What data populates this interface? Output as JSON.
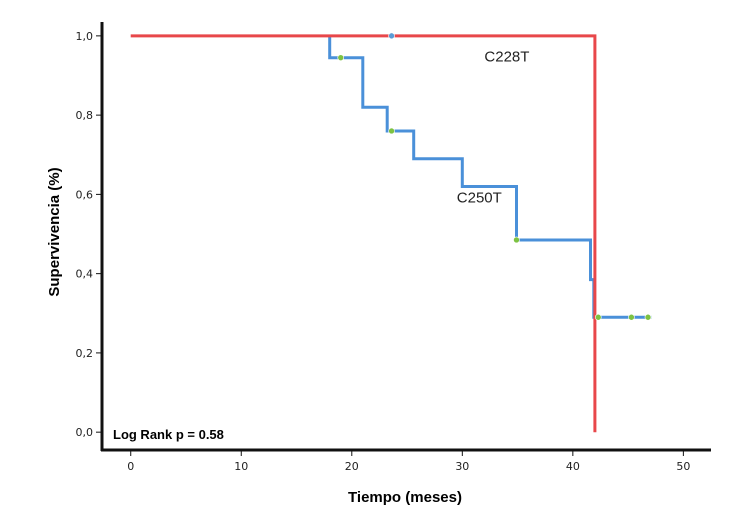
{
  "chart_data": {
    "type": "line",
    "subtype": "kaplan-meier-step",
    "xlabel": "Tiempo (meses)",
    "ylabel": "Supervivencia (%)",
    "xlim": [
      -2.6,
      52.5
    ],
    "ylim": [
      -0.045,
      1.035
    ],
    "x_ticks": [
      0,
      10,
      20,
      30,
      40,
      50
    ],
    "x_tick_labels": [
      "0",
      "10",
      "20",
      "30",
      "40",
      "50"
    ],
    "y_ticks": [
      0.0,
      0.2,
      0.4,
      0.6,
      0.8,
      1.0
    ],
    "y_tick_labels": [
      "0,0",
      "0,2",
      "0,4",
      "0,6",
      "0,8",
      "1,0"
    ],
    "annotation": "Log Rank p = 0.58",
    "series": [
      {
        "name": "C228T",
        "color": "#e8474a",
        "steps": [
          [
            0,
            1.0
          ],
          [
            42.0,
            1.0
          ],
          [
            42.0,
            0.0
          ]
        ],
        "censored": [
          [
            23.6,
            1.0
          ]
        ],
        "censor_color": "#5b9bd5"
      },
      {
        "name": "C250T",
        "color": "#4a90d9",
        "steps": [
          [
            18.0,
            1.0
          ],
          [
            18.0,
            0.945
          ],
          [
            21.0,
            0.945
          ],
          [
            21.0,
            0.82
          ],
          [
            23.2,
            0.82
          ],
          [
            23.2,
            0.76
          ],
          [
            25.6,
            0.76
          ],
          [
            25.6,
            0.69
          ],
          [
            30.0,
            0.69
          ],
          [
            30.0,
            0.62
          ],
          [
            34.9,
            0.62
          ],
          [
            34.9,
            0.485
          ],
          [
            41.6,
            0.485
          ],
          [
            41.6,
            0.385
          ],
          [
            41.9,
            0.385
          ],
          [
            41.9,
            0.29
          ],
          [
            47.1,
            0.29
          ]
        ],
        "censored": [
          [
            19.0,
            0.945
          ],
          [
            23.6,
            0.76
          ],
          [
            34.9,
            0.485
          ],
          [
            42.3,
            0.29
          ],
          [
            45.3,
            0.29
          ],
          [
            46.8,
            0.29
          ]
        ],
        "censor_color": "#7dc242"
      }
    ],
    "series_labels": [
      {
        "series": "C228T",
        "text": "C228T",
        "at": [
          32.0,
          0.935
        ]
      },
      {
        "series": "C250T",
        "text": "C250T",
        "at": [
          29.5,
          0.58
        ]
      }
    ]
  }
}
